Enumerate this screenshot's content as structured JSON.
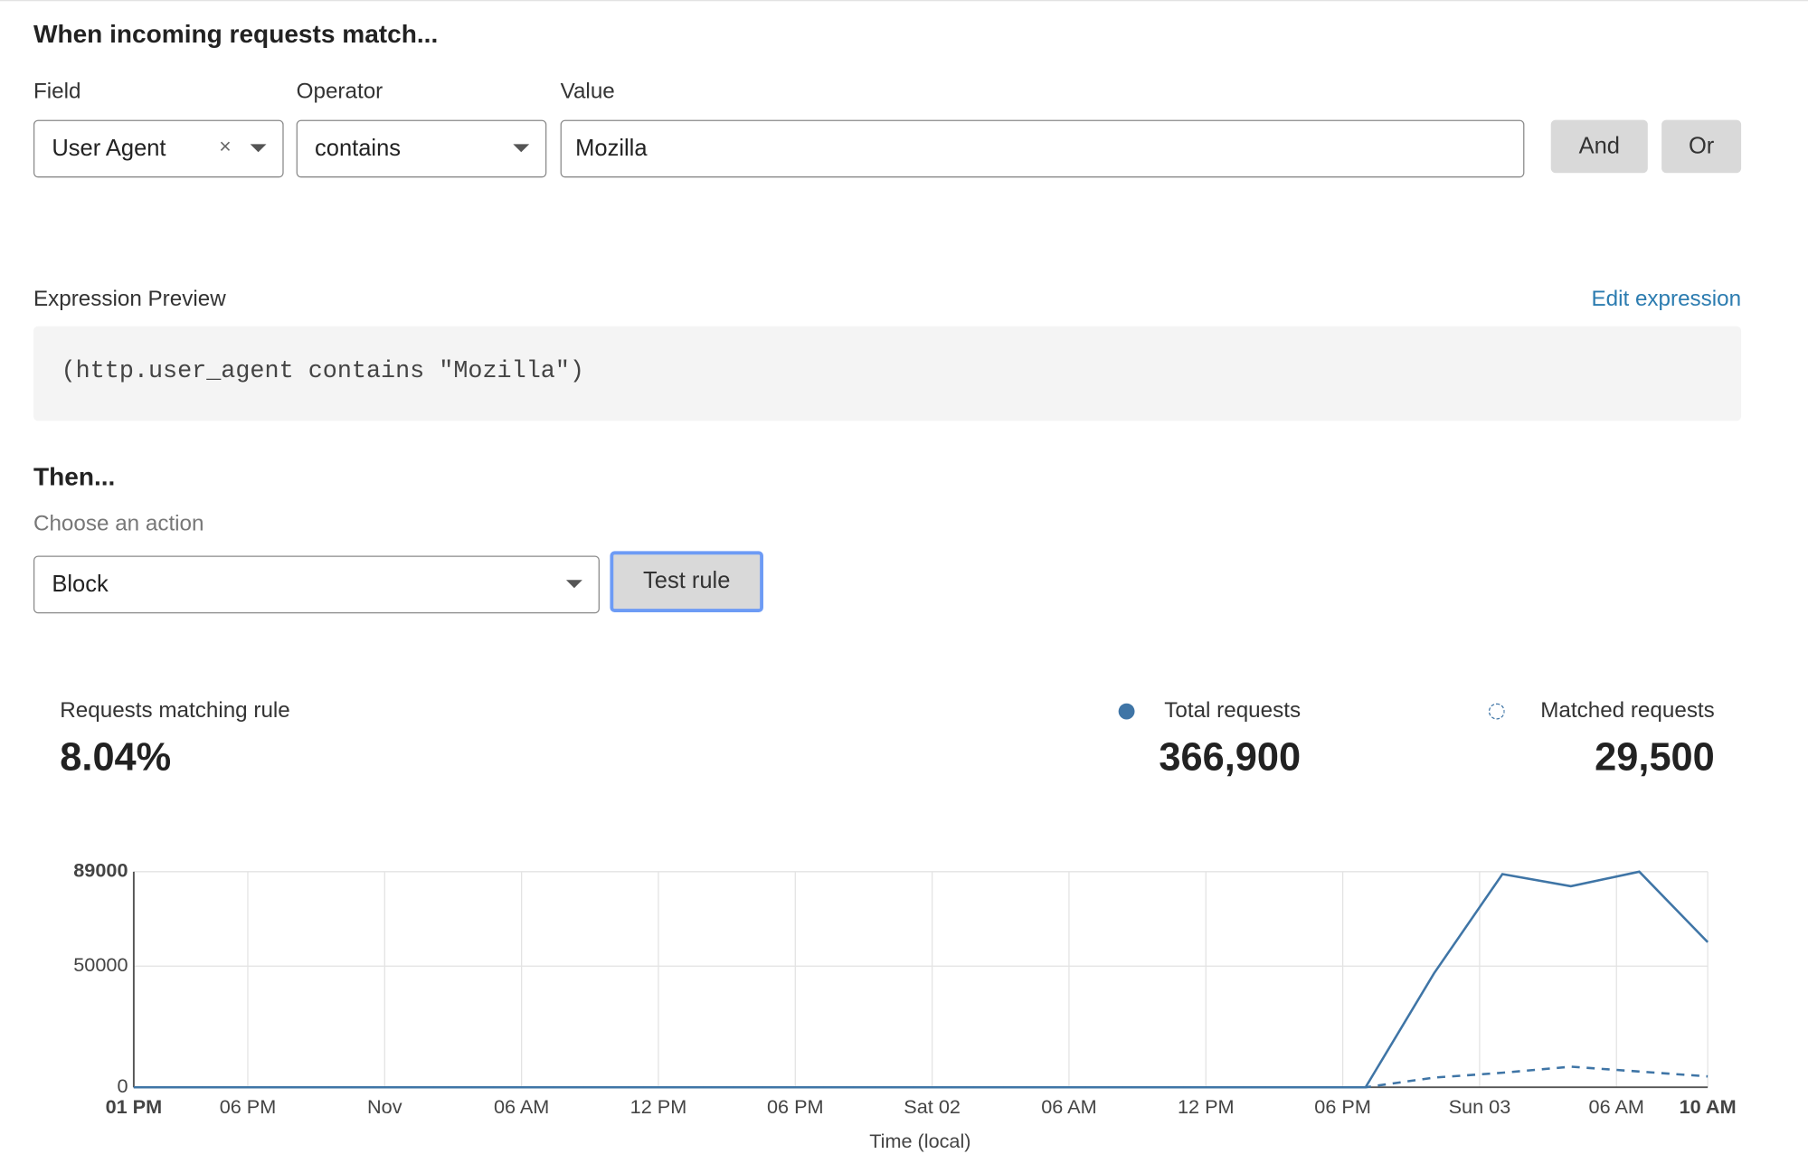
{
  "header": {
    "title": "When incoming requests match..."
  },
  "fields": [
    {
      "label": "Field",
      "value": "User Agent"
    },
    {
      "label": "Operator",
      "value": "contains"
    },
    {
      "label": "Value",
      "value": "Mozilla"
    }
  ],
  "buttons": [
    "And",
    "Or"
  ],
  "expression": {
    "label": "Expression Preview",
    "link": "Edit expression",
    "code": "(http.user_agent contains \"Mozilla\")"
  },
  "action": {
    "title": "Then...",
    "label": "Choose an action",
    "value": "Block",
    "button": "Test rule"
  },
  "stats": {
    "label": "Requests matching rule",
    "percent": "8.04%",
    "total": "366,900",
    "matched": "29,500"
  },
  "chart_data": {
    "type": "line",
    "xlabel": "Time (local)",
    "x": [
      0,
      3,
      6,
      9,
      12,
      15,
      18,
      21,
      24,
      27,
      30,
      33,
      36,
      39,
      42,
      45,
      48,
      51,
      54,
      57,
      60,
      63,
      66,
      69
    ],
    "xlim": [
      0,
      69
    ],
    "xticks": [
      {
        "value": 0,
        "label": "01 PM"
      },
      {
        "value": 5,
        "label": "06 PM"
      },
      {
        "value": 11,
        "label": "Nov"
      },
      {
        "value": 17,
        "label": "06 AM"
      },
      {
        "value": 23,
        "label": "12 PM"
      },
      {
        "value": 29,
        "label": "06 PM"
      },
      {
        "value": 35,
        "label": "Sat 02"
      },
      {
        "value": 41,
        "label": "06 AM"
      },
      {
        "value": 47,
        "label": "12 PM"
      },
      {
        "value": 53,
        "label": "06 PM"
      },
      {
        "value": 59,
        "label": "Sun 03"
      },
      {
        "value": 65,
        "label": "06 AM"
      },
      {
        "value": 69,
        "label": "10 AM"
      }
    ],
    "ylim": [
      0,
      89000
    ],
    "yticks": [
      0,
      50000,
      89000
    ],
    "grid": true,
    "series": [
      {
        "name": "Total requests",
        "color": "#3f75a6",
        "dashed": false,
        "values": [
          0,
          0,
          0,
          0,
          0,
          0,
          0,
          0,
          0,
          0,
          0,
          0,
          0,
          0,
          0,
          0,
          0,
          0,
          0,
          47000,
          88000,
          83000,
          89000,
          59900
        ]
      },
      {
        "name": "Matched requests",
        "color": "#3f75a6",
        "dashed": true,
        "values": [
          0,
          0,
          0,
          0,
          0,
          0,
          0,
          0,
          0,
          0,
          0,
          0,
          0,
          0,
          0,
          0,
          0,
          0,
          0,
          4000,
          6000,
          8500,
          6500,
          4500
        ]
      }
    ]
  }
}
